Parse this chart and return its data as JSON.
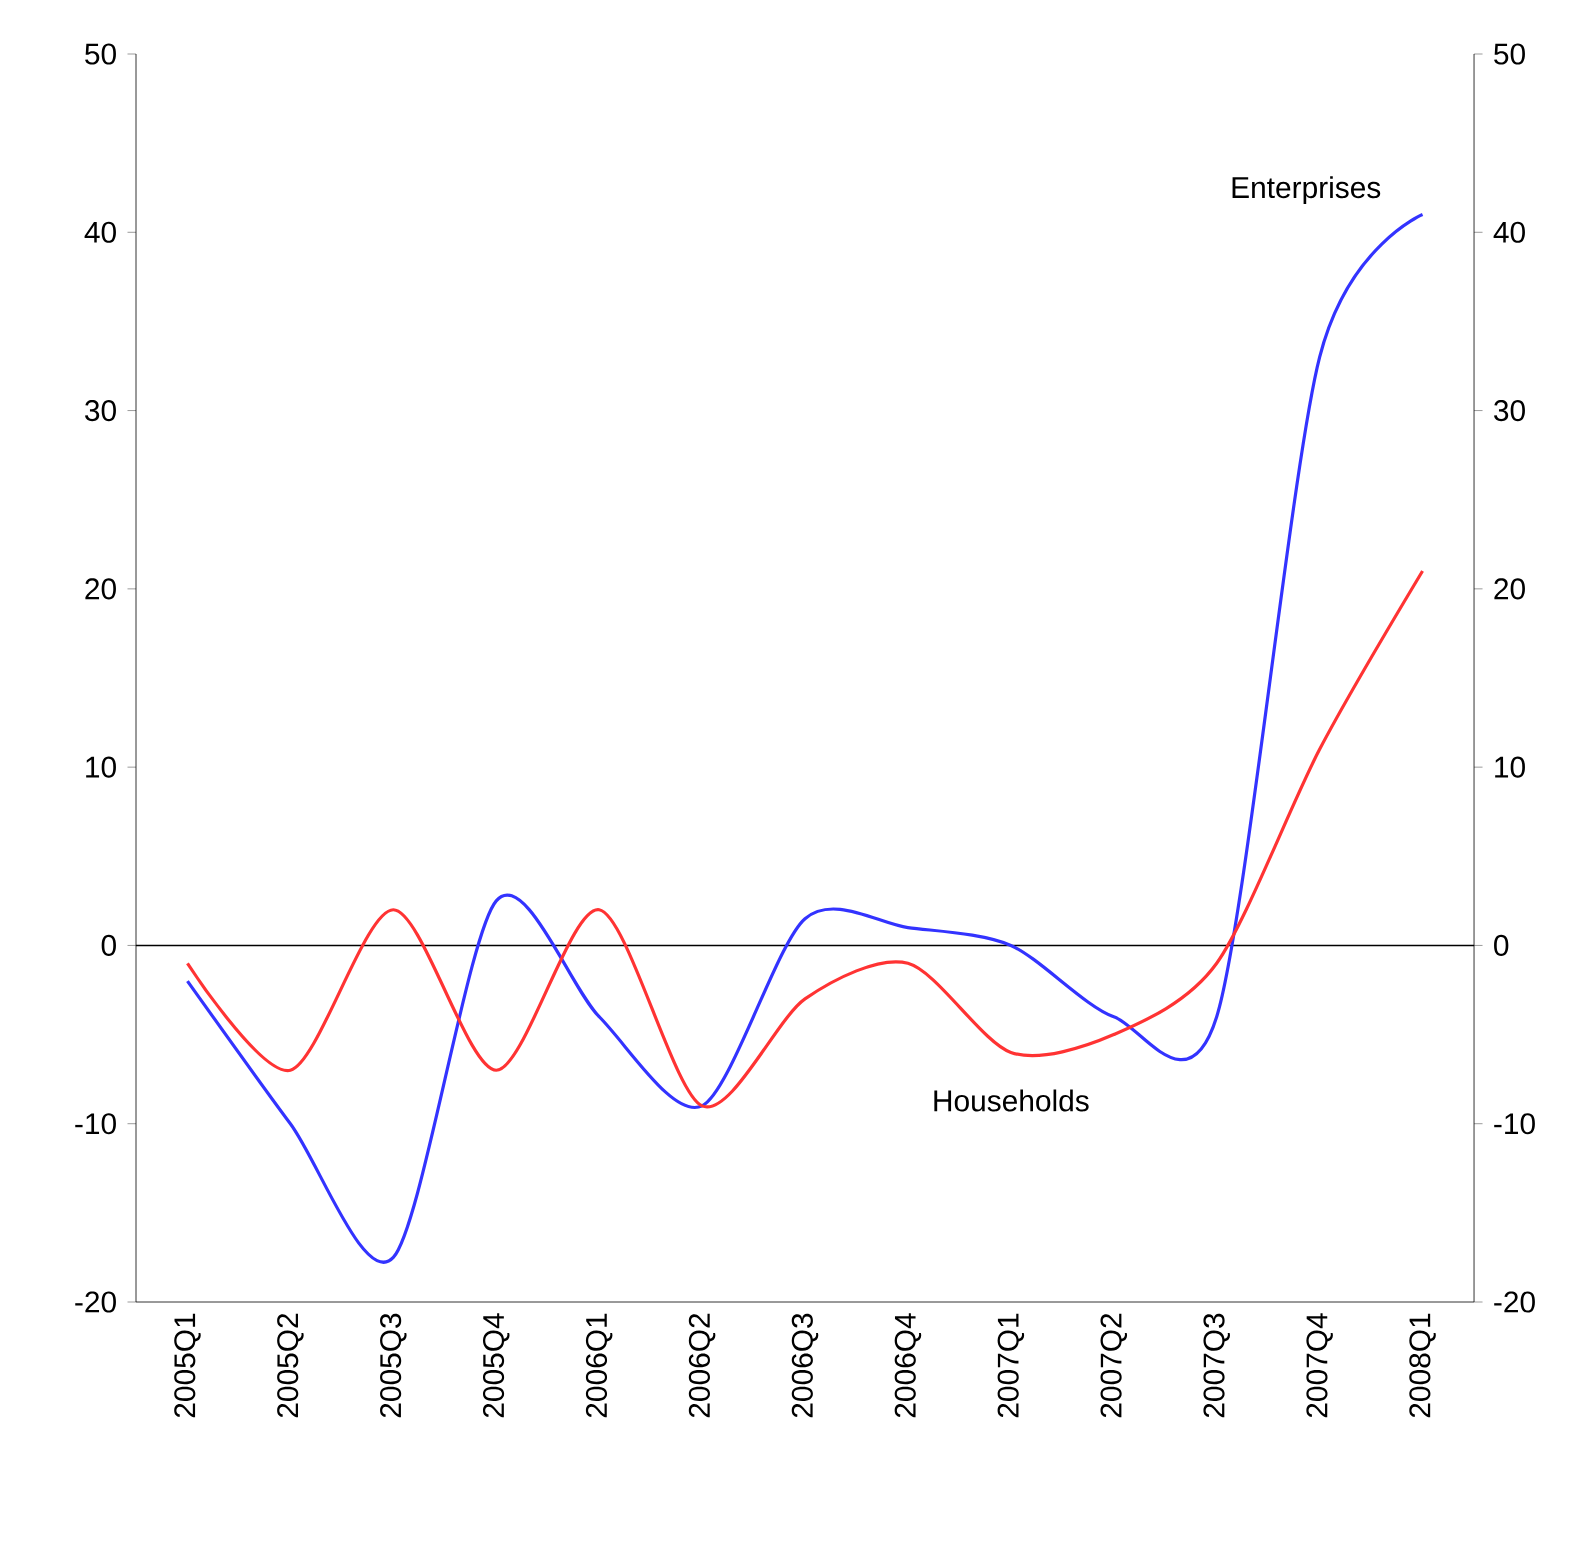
{
  "chart_data": {
    "type": "line",
    "categories": [
      "2005Q1",
      "2005Q2",
      "2005Q3",
      "2005Q4",
      "2006Q1",
      "2006Q2",
      "2006Q3",
      "2006Q4",
      "2007Q1",
      "2007Q2",
      "2007Q3",
      "2007Q4",
      "2008Q1"
    ],
    "series": [
      {
        "name": "Enterprises",
        "color": "#3333ff",
        "values": [
          -2,
          -10,
          -17.5,
          2.5,
          -4,
          -9,
          1.5,
          1,
          0,
          -4,
          -4,
          33,
          41
        ]
      },
      {
        "name": "Households",
        "color": "#ff3333",
        "values": [
          -1,
          -7,
          2,
          -7,
          2,
          -9,
          -3,
          -1,
          -6,
          -5,
          -1,
          11,
          21
        ]
      }
    ],
    "ylim": [
      -20,
      50
    ],
    "yticks": [
      -20,
      -10,
      0,
      10,
      20,
      30,
      40,
      50
    ],
    "y2lim": [
      -20,
      50
    ],
    "y2ticks": [
      -20,
      -10,
      0,
      10,
      20,
      30,
      40,
      50
    ],
    "ref_lines": [
      {
        "axis": "y",
        "value": 0,
        "color": "#000000"
      }
    ],
    "grid": false,
    "marker": "none",
    "line_style": "solid"
  }
}
